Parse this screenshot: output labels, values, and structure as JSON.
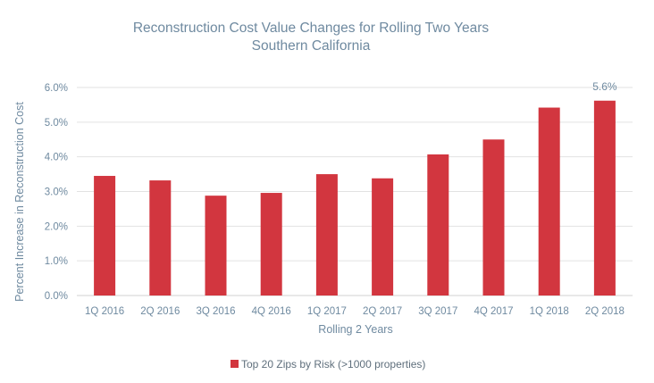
{
  "chart_data": {
    "type": "bar",
    "title": "Reconstruction Cost Value Changes for Rolling Two Years",
    "subtitle": "Southern California",
    "xlabel": "Rolling 2 Years",
    "ylabel": "Percent Increase in Reconstruction Cost",
    "categories": [
      "1Q 2016",
      "2Q 2016",
      "3Q 2016",
      "4Q 2016",
      "1Q 2017",
      "2Q 2017",
      "3Q 2017",
      "4Q 2017",
      "1Q 2018",
      "2Q 2018"
    ],
    "series": [
      {
        "name": "Top 20 Zips by Risk (>1000 properties)",
        "values": [
          3.45,
          3.32,
          2.88,
          2.96,
          3.5,
          3.38,
          4.07,
          4.5,
          5.42,
          5.62
        ],
        "color": "#d2363f"
      }
    ],
    "ylim": [
      0,
      6
    ],
    "yticks": [
      "0.0%",
      "1.0%",
      "2.0%",
      "3.0%",
      "4.0%",
      "5.0%",
      "6.0%"
    ],
    "data_labels": [
      {
        "category": "2Q 2018",
        "text": "5.6%"
      }
    ],
    "grid": true,
    "legend_position": "bottom"
  }
}
